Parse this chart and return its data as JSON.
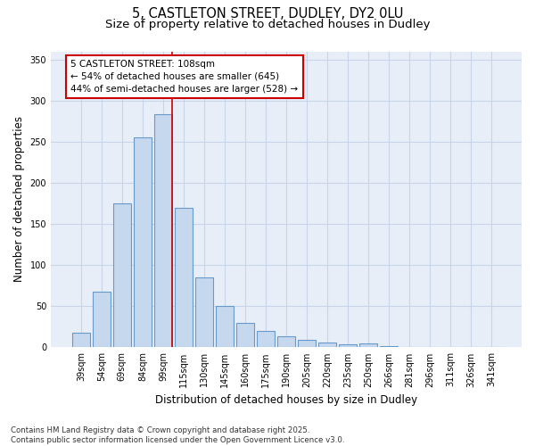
{
  "title_line1": "5, CASTLETON STREET, DUDLEY, DY2 0LU",
  "title_line2": "Size of property relative to detached houses in Dudley",
  "xlabel": "Distribution of detached houses by size in Dudley",
  "ylabel": "Number of detached properties",
  "categories": [
    "39sqm",
    "54sqm",
    "69sqm",
    "84sqm",
    "99sqm",
    "115sqm",
    "130sqm",
    "145sqm",
    "160sqm",
    "175sqm",
    "190sqm",
    "205sqm",
    "220sqm",
    "235sqm",
    "250sqm",
    "266sqm",
    "281sqm",
    "296sqm",
    "311sqm",
    "326sqm",
    "341sqm"
  ],
  "values": [
    18,
    68,
    175,
    255,
    283,
    170,
    85,
    50,
    30,
    20,
    13,
    9,
    6,
    4,
    5,
    2,
    1,
    0,
    0,
    0,
    0
  ],
  "bar_color": "#c5d8ee",
  "bar_edge_color": "#6699cc",
  "grid_color": "#c8d4e8",
  "background_color": "#e8eef8",
  "vline_x_index": 4,
  "vline_color": "#cc0000",
  "annotation_text": "5 CASTLETON STREET: 108sqm\n← 54% of detached houses are smaller (645)\n44% of semi-detached houses are larger (528) →",
  "annotation_box_color": "#ffffff",
  "annotation_box_edge": "#cc0000",
  "ylim": [
    0,
    360
  ],
  "yticks": [
    0,
    50,
    100,
    150,
    200,
    250,
    300,
    350
  ],
  "footnote": "Contains HM Land Registry data © Crown copyright and database right 2025.\nContains public sector information licensed under the Open Government Licence v3.0.",
  "title_fontsize": 10.5,
  "subtitle_fontsize": 9.5,
  "axis_label_fontsize": 8.5,
  "tick_fontsize": 7,
  "annot_fontsize": 7.5
}
